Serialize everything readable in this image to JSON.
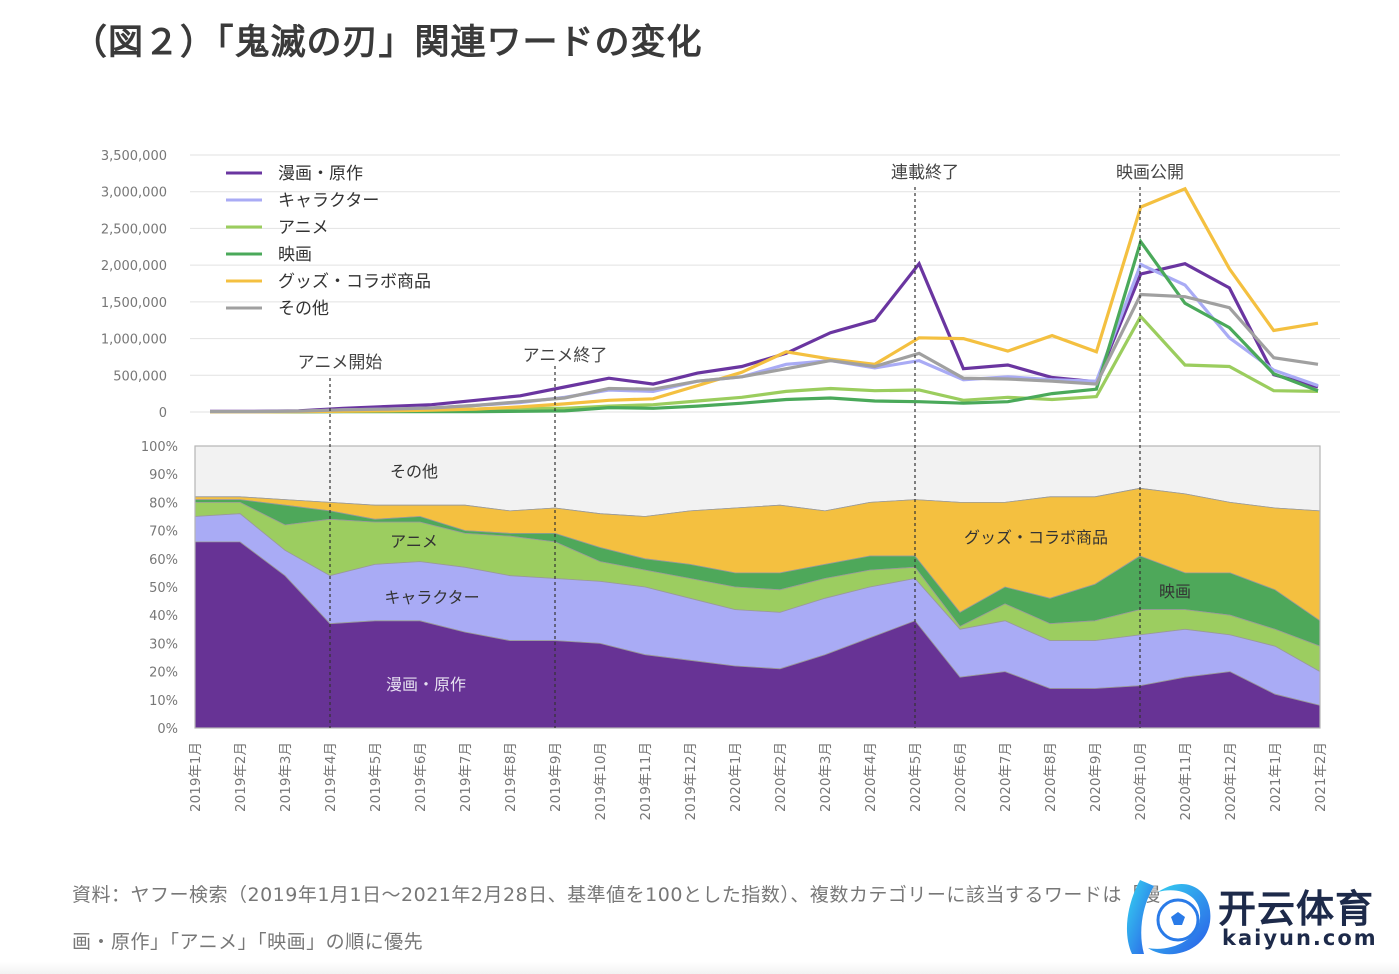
{
  "title": "（図２）「鬼滅の刃」関連ワードの変化",
  "notes": {
    "line1": "資料：ヤフー検索（2019年1月1日～2021年2月28日、基準値を100とした指数）、複数カテゴリーに該当するワードは「漫",
    "line2": "画・原作」「アニメ」「映画」の順に優先"
  },
  "watermark": {
    "cn": "开云体育",
    "en": "kaiyun.com"
  },
  "chart_data": [
    {
      "type": "line",
      "title": "",
      "ylabel": "",
      "ylim": [
        0,
        3500000
      ],
      "yticks": [
        "0",
        "500,000",
        "1,000,000",
        "1,500,000",
        "2,000,000",
        "2,500,000",
        "3,000,000",
        "3,500,000"
      ],
      "ytick_values": [
        0,
        500000,
        1000000,
        1500000,
        2000000,
        2500000,
        3000000,
        3500000
      ],
      "grid": true,
      "legend": "top-left",
      "x": [
        "2019年1月",
        "2019年2月",
        "2019年3月",
        "2019年4月",
        "2019年5月",
        "2019年6月",
        "2019年7月",
        "2019年8月",
        "2019年9月",
        "2019年10月",
        "2019年11月",
        "2019年12月",
        "2020年1月",
        "2020年2月",
        "2020年3月",
        "2020年4月",
        "2020年5月",
        "2020年6月",
        "2020年7月",
        "2020年8月",
        "2020年9月",
        "2020年10月",
        "2020年11月",
        "2020年12月",
        "2021年1月",
        "2021年2月"
      ],
      "series": [
        {
          "name": "漫画・原作",
          "color": "#6a35a0",
          "values": [
            10000,
            10000,
            15000,
            50000,
            75000,
            100000,
            160000,
            220000,
            340000,
            460000,
            380000,
            530000,
            620000,
            800000,
            1080000,
            1250000,
            2020000,
            590000,
            640000,
            470000,
            410000,
            1880000,
            2020000,
            1690000,
            510000,
            340000
          ]
        },
        {
          "name": "キャラクター",
          "color": "#a9abf5",
          "values": [
            5000,
            5000,
            8000,
            30000,
            40000,
            55000,
            90000,
            130000,
            200000,
            300000,
            280000,
            420000,
            480000,
            650000,
            700000,
            600000,
            700000,
            440000,
            480000,
            440000,
            420000,
            2010000,
            1730000,
            1010000,
            570000,
            360000
          ]
        },
        {
          "name": "アニメ",
          "color": "#9bcd5e",
          "values": [
            3000,
            3000,
            5000,
            20000,
            20000,
            30000,
            40000,
            50000,
            50000,
            80000,
            100000,
            150000,
            200000,
            280000,
            320000,
            290000,
            300000,
            160000,
            200000,
            170000,
            210000,
            1300000,
            640000,
            620000,
            290000,
            280000
          ]
        },
        {
          "name": "映画",
          "color": "#4aa95a",
          "values": [
            1000,
            1000,
            2000,
            5000,
            5000,
            5000,
            5000,
            10000,
            15000,
            60000,
            50000,
            80000,
            120000,
            170000,
            190000,
            150000,
            140000,
            120000,
            140000,
            250000,
            310000,
            2320000,
            1480000,
            1150000,
            520000,
            290000
          ]
        },
        {
          "name": "グッズ・コラボ商品",
          "color": "#f4c040",
          "values": [
            2000,
            2000,
            5000,
            10000,
            15000,
            25000,
            40000,
            70000,
            110000,
            160000,
            180000,
            360000,
            540000,
            820000,
            720000,
            650000,
            1010000,
            1000000,
            830000,
            1040000,
            820000,
            2790000,
            3040000,
            1950000,
            1110000,
            1210000
          ]
        },
        {
          "name": "その他",
          "color": "#a0a0a0",
          "values": [
            6000,
            6000,
            12000,
            30000,
            40000,
            55000,
            90000,
            140000,
            190000,
            320000,
            310000,
            420000,
            480000,
            590000,
            700000,
            620000,
            800000,
            460000,
            450000,
            420000,
            380000,
            1600000,
            1570000,
            1420000,
            740000,
            650000
          ]
        }
      ],
      "annotations": [
        {
          "label": "アニメ開始",
          "x": "2019年4月"
        },
        {
          "label": "アニメ終了",
          "x": "2019年9月"
        },
        {
          "label": "連載終了",
          "x": "2020年5月"
        },
        {
          "label": "映画公開",
          "x": "2020年10月"
        }
      ]
    },
    {
      "type": "area",
      "stacked": true,
      "normalized": true,
      "title": "",
      "ylim": [
        0,
        100
      ],
      "yticks": [
        "0%",
        "10%",
        "20%",
        "30%",
        "40%",
        "50%",
        "60%",
        "70%",
        "80%",
        "90%",
        "100%"
      ],
      "ytick_values": [
        0,
        10,
        20,
        30,
        40,
        50,
        60,
        70,
        80,
        90,
        100
      ],
      "x": [
        "2019年1月",
        "2019年2月",
        "2019年3月",
        "2019年4月",
        "2019年5月",
        "2019年6月",
        "2019年7月",
        "2019年8月",
        "2019年9月",
        "2019年10月",
        "2019年11月",
        "2019年12月",
        "2020年1月",
        "2020年2月",
        "2020年3月",
        "2020年4月",
        "2020年5月",
        "2020年6月",
        "2020年7月",
        "2020年8月",
        "2020年9月",
        "2020年10月",
        "2020年11月",
        "2020年12月",
        "2021年1月",
        "2021年2月"
      ],
      "series_cumulative_top_percent": [
        {
          "name": "漫画・原作",
          "color": "#673395",
          "label_x": "2019年6月",
          "label_y": 15,
          "values": [
            66,
            66,
            54,
            37,
            38,
            38,
            34,
            31,
            31,
            30,
            26,
            24,
            22,
            21,
            26,
            32,
            38,
            18,
            20,
            14,
            14,
            15,
            18,
            20,
            12,
            8
          ]
        },
        {
          "name": "キャラクター",
          "color": "#a9abf5",
          "label_x": "2019年6月",
          "label_y": 46,
          "values": [
            75,
            76,
            63,
            54,
            58,
            59,
            57,
            54,
            53,
            52,
            50,
            46,
            42,
            41,
            46,
            50,
            53,
            35,
            38,
            31,
            31,
            33,
            35,
            33,
            29,
            20
          ]
        },
        {
          "name": "アニメ",
          "color": "#9ccd60",
          "label_x": "2019年6月",
          "label_y": 66,
          "values": [
            80,
            80,
            72,
            74,
            73,
            73,
            69,
            68,
            66,
            59,
            56,
            53,
            50,
            49,
            53,
            56,
            57,
            36,
            44,
            37,
            38,
            42,
            42,
            40,
            35,
            29
          ]
        },
        {
          "name": "映画",
          "color": "#4ea85a",
          "label_x": "2020年11月",
          "label_y": 49,
          "values": [
            81,
            81,
            79,
            77,
            74,
            75,
            70,
            69,
            69,
            64,
            60,
            58,
            55,
            55,
            58,
            61,
            61,
            41,
            50,
            46,
            51,
            61,
            55,
            55,
            49,
            38
          ]
        },
        {
          "name": "グッズ・コラボ商品",
          "color": "#f4c040",
          "label_x": "2020年8月",
          "label_y": 68,
          "values": [
            82,
            82,
            81,
            80,
            79,
            79,
            79,
            77,
            78,
            76,
            75,
            77,
            78,
            79,
            77,
            80,
            81,
            80,
            80,
            82,
            82,
            85,
            83,
            80,
            78,
            77
          ]
        },
        {
          "name": "その他",
          "color": "#f2f2f2",
          "label_x": "2019年6月",
          "label_y": 91,
          "values": [
            100,
            100,
            100,
            100,
            100,
            100,
            100,
            100,
            100,
            100,
            100,
            100,
            100,
            100,
            100,
            100,
            100,
            100,
            100,
            100,
            100,
            100,
            100,
            100,
            100,
            100
          ]
        }
      ]
    }
  ]
}
